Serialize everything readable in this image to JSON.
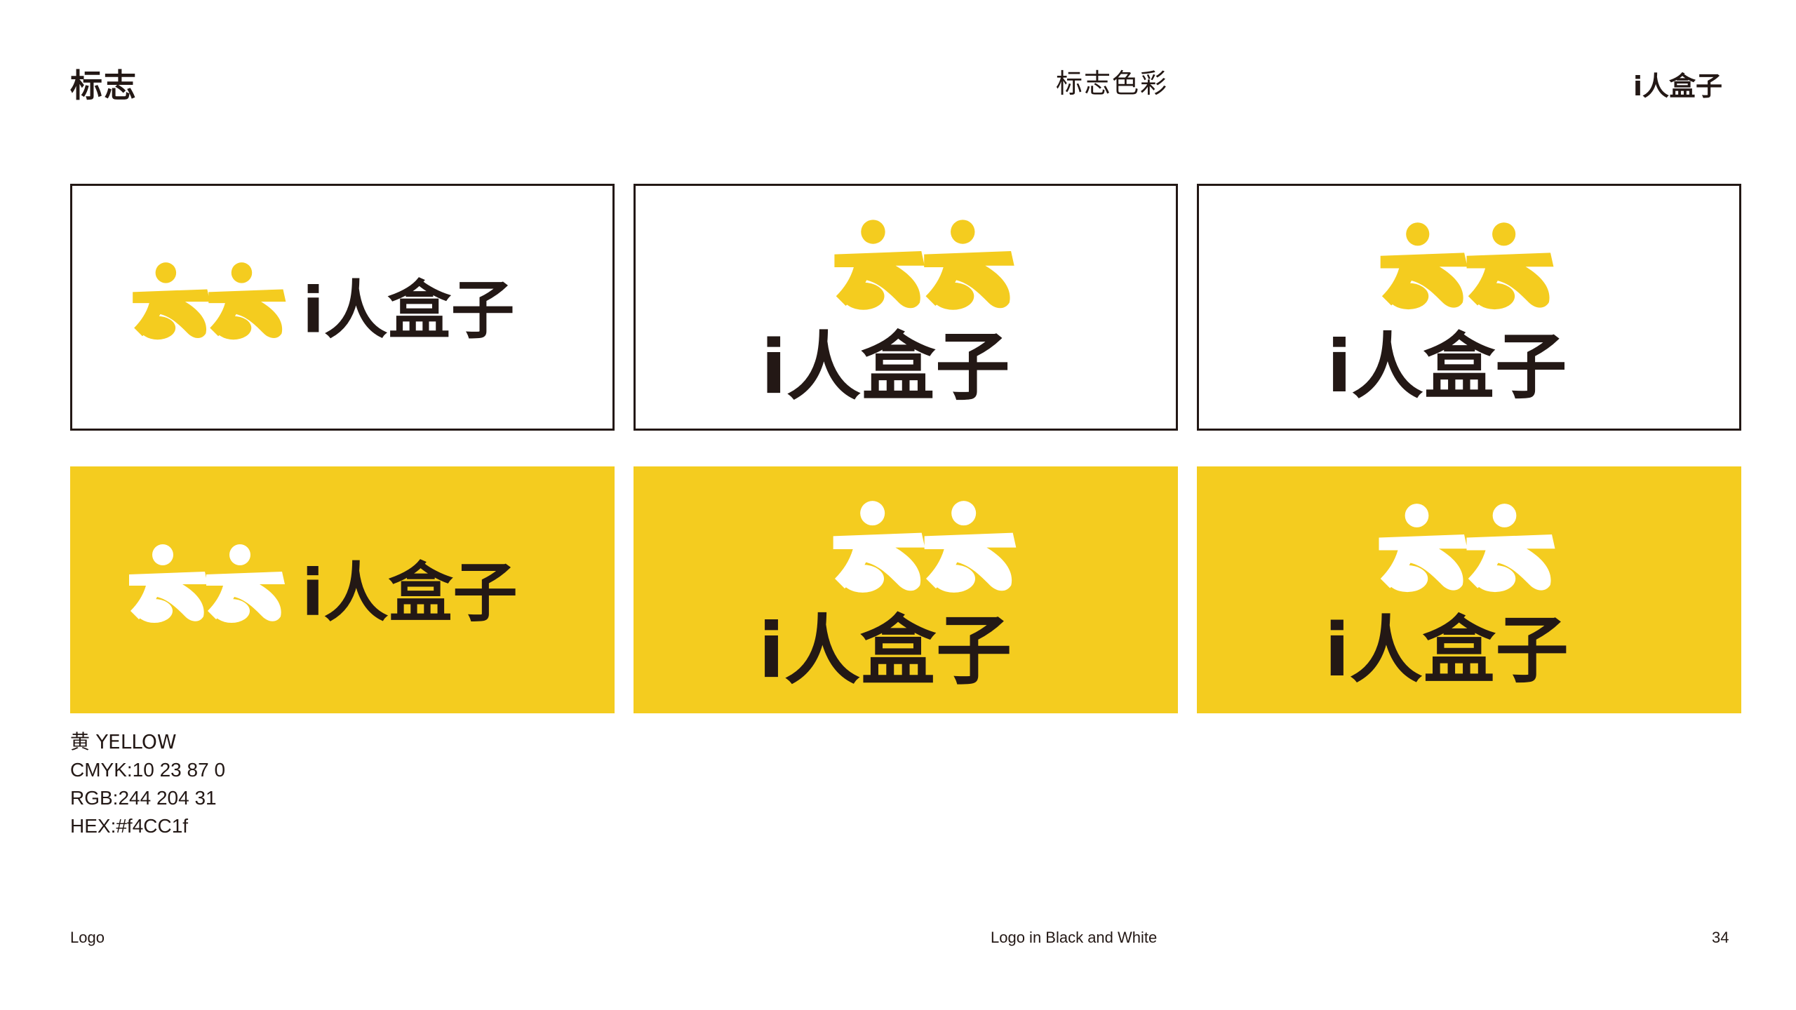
{
  "header": {
    "section_title": "标志",
    "page_title": "标志色彩",
    "brand_logo_text": "i人盒子"
  },
  "colors": {
    "brand_yellow": "#f4cc1f",
    "ink_dark": "#231815",
    "white": "#ffffff"
  },
  "logo_panels": [
    {
      "layout": "horizontal",
      "background": "white",
      "mark_color": "yellow",
      "wordmark": "i人盒子"
    },
    {
      "layout": "stacked",
      "background": "white",
      "mark_color": "yellow",
      "wordmark": "i人盒子"
    },
    {
      "layout": "stacked",
      "background": "white",
      "mark_color": "yellow",
      "wordmark": "i人盒子"
    },
    {
      "layout": "horizontal",
      "background": "yellow",
      "mark_color": "white",
      "wordmark": "i人盒子"
    },
    {
      "layout": "stacked",
      "background": "yellow",
      "mark_color": "white",
      "wordmark": "i人盒子"
    },
    {
      "layout": "stacked",
      "background": "yellow",
      "mark_color": "white",
      "wordmark": "i人盒子"
    }
  ],
  "color_spec": {
    "name": "黄 YELLOW",
    "cmyk": "CMYK:10 23 87 0",
    "rgb": "RGB:244 204 31",
    "hex": "HEX:#f4CC1f"
  },
  "footer": {
    "left": "Logo",
    "center": "Logo in Black and White",
    "page_number": "34"
  }
}
